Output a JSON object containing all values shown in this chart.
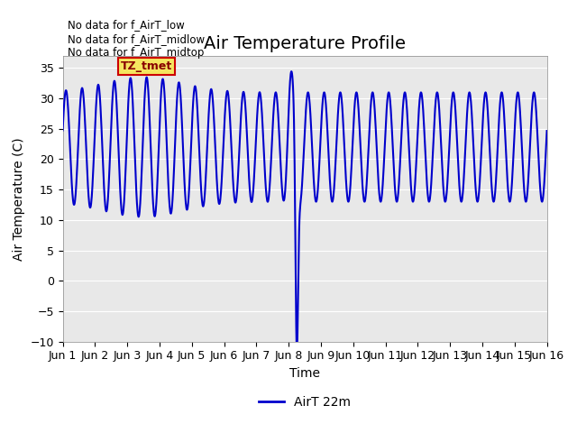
{
  "title": "Air Temperature Profile",
  "xlabel": "Time",
  "ylabel": "Air Temperature (C)",
  "ylim": [
    -10,
    37
  ],
  "xlim": [
    0,
    15
  ],
  "xtick_labels": [
    "Jun 1",
    "Jun 2",
    "Jun 3",
    "Jun 4",
    "Jun 5",
    "Jun 6",
    "Jun 7",
    "Jun 8",
    "Jun 9",
    "Jun 10",
    "Jun 11",
    "Jun 12",
    "Jun 13",
    "Jun 14",
    "Jun 15",
    "Jun 16"
  ],
  "ytick_values": [
    -10,
    -5,
    0,
    5,
    10,
    15,
    20,
    25,
    30,
    35
  ],
  "line_color": "#0000cc",
  "plot_bg_color": "#e8e8e8",
  "fig_bg_color": "#ffffff",
  "no_data_texts": [
    "No data for f_AirT_low",
    "No data for f_AirT_midlow",
    "No data for f_AirT_midtop"
  ],
  "tz_label": "TZ_tmet",
  "legend_label": "AirT 22m",
  "title_fontsize": 14,
  "label_fontsize": 10,
  "tick_fontsize": 9
}
